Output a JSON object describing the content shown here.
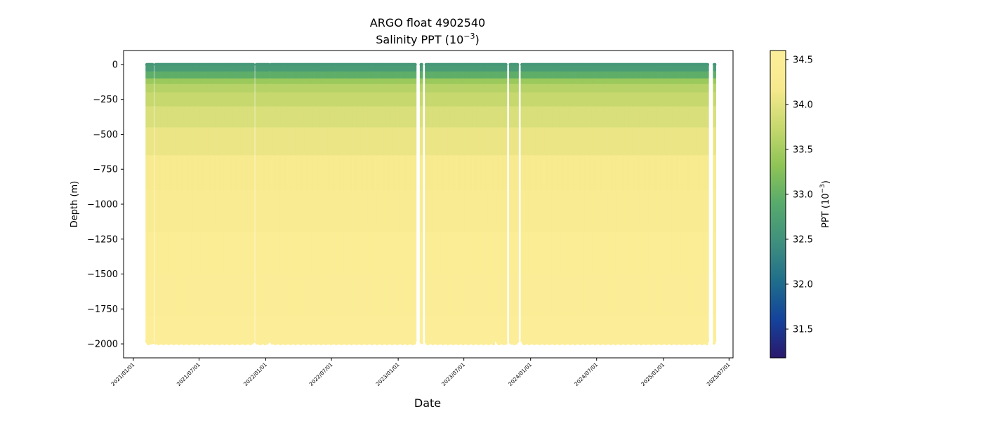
{
  "chart_data": {
    "type": "scatter",
    "title_line1": "ARGO float 4902540",
    "title_line2_prefix": "Salinity PPT (10",
    "title_line2_exp": "−3",
    "title_line2_suffix": ")",
    "xlabel": "Date",
    "ylabel": "Depth (m)",
    "colorbar_label_prefix": "PPT (10",
    "colorbar_label_exp": "−3",
    "colorbar_label_suffix": ")",
    "colormap": "haline",
    "colormap_stops": [
      "#2a186c",
      "#14439c",
      "#1f6e8b",
      "#3f8f7e",
      "#56aa6c",
      "#8ec456",
      "#c6d86e",
      "#f6e98d",
      "#fdef9a"
    ],
    "clim": [
      31.18,
      34.6
    ],
    "colorbar_ticks": [
      31.5,
      32.0,
      32.5,
      33.0,
      33.5,
      34.0,
      34.5
    ],
    "colorbar_tick_labels": [
      "31.5",
      "32.0",
      "32.5",
      "33.0",
      "33.5",
      "34.0",
      "34.5"
    ],
    "xlim": [
      "2020-12-05",
      "2025-07-12"
    ],
    "ylim": [
      -2100,
      100
    ],
    "yticks": [
      0,
      -250,
      -500,
      -750,
      -1000,
      -1250,
      -1500,
      -1750,
      -2000
    ],
    "ytick_labels": [
      "0",
      "−250",
      "−500",
      "−750",
      "−1000",
      "−1250",
      "−1500",
      "−1750",
      "−2000"
    ],
    "xticks": [
      "2021-01-01",
      "2021-07-01",
      "2022-01-01",
      "2022-07-01",
      "2023-01-01",
      "2023-07-01",
      "2024-01-01",
      "2024-07-01",
      "2025-01-01",
      "2025-07-01"
    ],
    "xtick_labels": [
      "2021/01/01",
      "2021/07/01",
      "2022/01/01",
      "2022/07/01",
      "2023/01/01",
      "2023/07/01",
      "2024/01/01",
      "2024/07/01",
      "2025/01/01",
      "2025/07/01"
    ],
    "grid": false,
    "profiles": {
      "first_date": "2021-02-07",
      "last_date": "2025-05-24",
      "interval_days": 2,
      "gaps": [
        [
          "2021-02-25",
          "2021-03-01"
        ],
        [
          "2021-11-29",
          "2021-12-05"
        ],
        [
          "2022-01-10",
          "2022-01-14"
        ],
        [
          "2023-02-19",
          "2023-03-03"
        ],
        [
          "2023-03-09",
          "2023-03-17"
        ],
        [
          "2023-10-27",
          "2023-11-05"
        ],
        [
          "2023-11-27",
          "2023-12-07"
        ],
        [
          "2025-05-05",
          "2025-05-19"
        ]
      ],
      "typical_max_depth": -1975,
      "shallow_profile": {
        "date": "2023-09-26",
        "max_depth": -1840
      },
      "salinity_vs_depth": [
        {
          "depth": 0,
          "salinity": 32.6
        },
        {
          "depth": -60,
          "salinity": 32.75
        },
        {
          "depth": -100,
          "salinity": 33.3
        },
        {
          "depth": -150,
          "salinity": 33.6
        },
        {
          "depth": -250,
          "salinity": 33.75
        },
        {
          "depth": -400,
          "salinity": 33.95
        },
        {
          "depth": -600,
          "salinity": 34.12
        },
        {
          "depth": -900,
          "salinity": 34.3
        },
        {
          "depth": -1300,
          "salinity": 34.42
        },
        {
          "depth": -1700,
          "salinity": 34.5
        },
        {
          "depth": -2000,
          "salinity": 34.55
        }
      ]
    }
  }
}
